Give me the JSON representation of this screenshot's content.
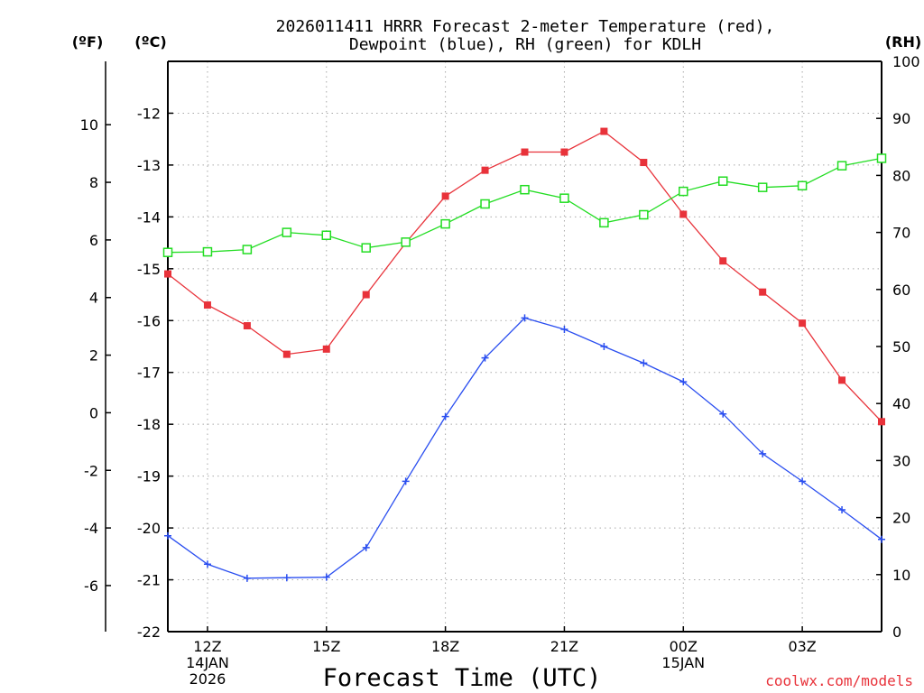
{
  "chart_data": {
    "type": "line",
    "title_lines": [
      "2026011411 HRRR Forecast 2-meter Temperature (red),",
      "Dewpoint (blue), RH (green) for KDLH"
    ],
    "units": {
      "fahrenheit": "(ºF)",
      "celsius": "(ºC)",
      "rh": "(RH)"
    },
    "xlabel": "Forecast Time (UTC)",
    "credit": "coolwx.com/models",
    "x_hours": [
      11,
      12,
      13,
      14,
      15,
      16,
      17,
      18,
      19,
      20,
      21,
      22,
      23,
      24,
      25,
      26,
      27,
      28,
      29
    ],
    "xlim": [
      11,
      29
    ],
    "x_ticks": [
      {
        "hour": 12,
        "lines": [
          "12Z",
          "14JAN",
          "2026"
        ]
      },
      {
        "hour": 15,
        "lines": [
          "15Z"
        ]
      },
      {
        "hour": 18,
        "lines": [
          "18Z"
        ]
      },
      {
        "hour": 21,
        "lines": [
          "21Z"
        ]
      },
      {
        "hour": 24,
        "lines": [
          "00Z",
          "15JAN"
        ]
      },
      {
        "hour": 27,
        "lines": [
          "03Z"
        ]
      }
    ],
    "celsius_axis": {
      "range": [
        -22,
        -11
      ],
      "ticks": [
        "-12",
        "-13",
        "-14",
        "-15",
        "-16",
        "-17",
        "-18",
        "-19",
        "-20",
        "-21",
        "-22"
      ]
    },
    "fahrenheit_axis": {
      "ticks": [
        "10",
        "8",
        "6",
        "4",
        "2",
        "0",
        "-2",
        "-4",
        "-6"
      ]
    },
    "rh_axis": {
      "range": [
        0,
        100
      ],
      "ticks": [
        "100",
        "90",
        "80",
        "70",
        "60",
        "50",
        "40",
        "30",
        "20",
        "10",
        "0"
      ]
    },
    "series": [
      {
        "name": "2-meter Temperature",
        "color": "#e8323a",
        "marker": "filled-square",
        "axis": "celsius",
        "values": [
          -15.1,
          -15.7,
          -16.1,
          -16.65,
          -16.55,
          -15.5,
          -14.5,
          -13.6,
          -13.1,
          -12.75,
          -12.75,
          -12.35,
          -12.95,
          -13.95,
          -14.85,
          -15.45,
          -16.05,
          -17.15,
          -17.95
        ]
      },
      {
        "name": "Dewpoint",
        "color": "#2a4ef0",
        "marker": "plus",
        "axis": "celsius",
        "values": [
          -20.15,
          -20.7,
          -20.97,
          -20.96,
          -20.95,
          -20.38,
          -19.1,
          -17.85,
          -16.72,
          -15.95,
          -16.17,
          -16.5,
          -16.82,
          -17.18,
          -17.8,
          -18.57,
          -19.1,
          -19.65,
          -20.22
        ]
      },
      {
        "name": "RH",
        "color": "#22dd22",
        "marker": "open-square",
        "axis": "rh",
        "values": [
          66.5,
          66.6,
          67.0,
          70.0,
          69.5,
          67.3,
          68.3,
          71.5,
          75.0,
          77.5,
          76.0,
          71.7,
          73.1,
          77.2,
          79.0,
          77.9,
          78.2,
          81.7,
          83.0
        ]
      }
    ]
  }
}
